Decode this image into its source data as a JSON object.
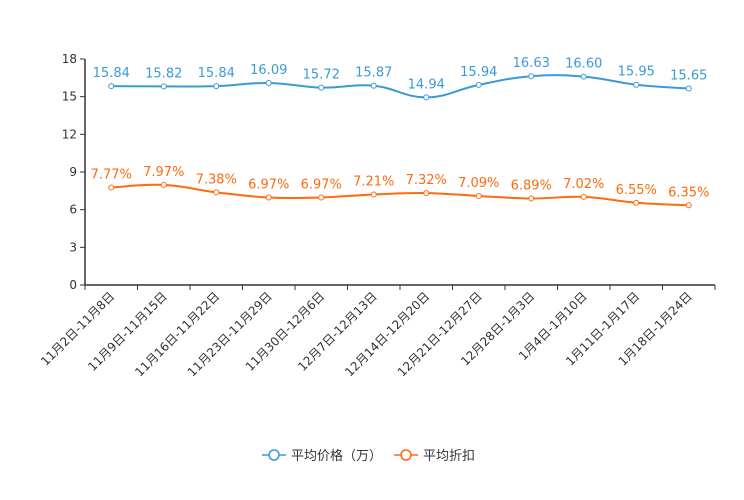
{
  "chart_data": {
    "type": "line",
    "title": "",
    "xlabel": "",
    "ylabel": "",
    "ylim": [
      0,
      18
    ],
    "yticks": [
      0,
      3,
      6,
      9,
      12,
      15,
      18
    ],
    "grid": false,
    "legend_position": "bottom-center",
    "categories": [
      "11月2日-11月8日",
      "11月9日-11月15日",
      "11月16日-11月22日",
      "11月23日-11月29日",
      "11月30日-12月6日",
      "12月7日-12月13日",
      "12月14日-12月20日",
      "12月21日-12月27日",
      "12月28日-1月3日",
      "1月4日-1月10日",
      "1月11日-1月17日",
      "1月18日-1月24日"
    ],
    "series": [
      {
        "name": "平均价格（万）",
        "color": "#3a9ad6",
        "values": [
          15.84,
          15.82,
          15.84,
          16.09,
          15.72,
          15.87,
          14.94,
          15.94,
          16.63,
          16.6,
          15.95,
          15.65
        ],
        "labels": [
          "15.84",
          "15.82",
          "15.84",
          "16.09",
          "15.72",
          "15.87",
          "14.94",
          "15.94",
          "16.63",
          "16.60",
          "15.95",
          "15.65"
        ]
      },
      {
        "name": "平均折扣",
        "color": "#ff6a0f",
        "values": [
          7.77,
          7.97,
          7.38,
          6.97,
          6.97,
          7.21,
          7.32,
          7.09,
          6.89,
          7.02,
          6.55,
          6.35
        ],
        "labels": [
          "7.77%",
          "7.97%",
          "7.38%",
          "6.97%",
          "6.97%",
          "7.21%",
          "7.32%",
          "7.09%",
          "6.89%",
          "7.02%",
          "6.55%",
          "6.35%"
        ]
      }
    ]
  }
}
